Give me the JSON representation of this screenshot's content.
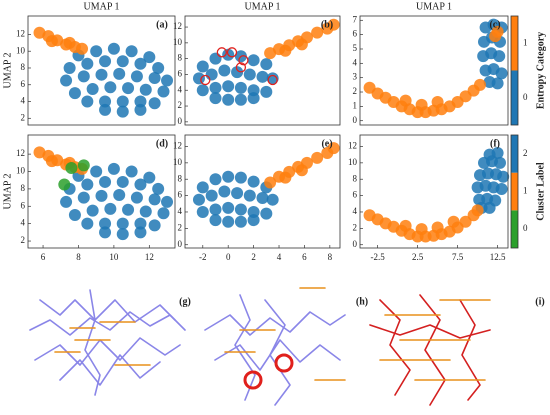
{
  "chart_data": [
    {
      "type": "scatter",
      "label": "(a)",
      "title": "UMAP 1",
      "ylabel": "UMAP 2",
      "xlim": [
        5.15,
        13.45
      ],
      "ylim": [
        1.2,
        14.2
      ],
      "yticks": [
        2,
        4,
        6,
        8,
        10,
        12
      ],
      "series": [
        {
          "color": "#1f77b4",
          "x": [
            8,
            9,
            10,
            11,
            12,
            7.5,
            8.5,
            9.5,
            10.5,
            11.5,
            12.5,
            7.3,
            8.3,
            9.3,
            10.3,
            11.3,
            12.3,
            13,
            7.8,
            8.8,
            9.8,
            10.8,
            11.8,
            12.8,
            8.5,
            9.5,
            10.5,
            11.5,
            12.3,
            9.5,
            10.5,
            11.5
          ],
          "y": [
            9.5,
            10,
            10.3,
            10,
            9.3,
            8,
            8.5,
            8.8,
            8.8,
            8.5,
            8,
            6.5,
            7,
            7.2,
            7.3,
            7,
            6.8,
            6.5,
            5,
            5.5,
            5.7,
            5.6,
            5.4,
            5.2,
            4,
            4,
            4,
            4,
            3.8,
            3,
            2.8,
            3
          ]
        },
        {
          "color": "#ff7f0e",
          "x": [
            5.8,
            6.3,
            6.8,
            7.3,
            7.8,
            8.2,
            6.5,
            7.5
          ],
          "y": [
            12.2,
            11.8,
            11.3,
            10.8,
            10.5,
            10.3,
            11.2,
            11.0
          ]
        }
      ]
    },
    {
      "type": "scatter",
      "label": "(b)",
      "title": "UMAP 1",
      "xlim": [
        -3.4,
        8.8
      ],
      "ylim": [
        -0.4,
        13.4
      ],
      "yticks": [
        0,
        2,
        4,
        6,
        8,
        10,
        12
      ],
      "series": [
        {
          "color": "#1f77b4",
          "x": [
            -2,
            -1,
            0,
            1,
            2,
            3,
            -2.3,
            -1.3,
            -0.3,
            0.7,
            1.7,
            2.7,
            3.5,
            -2,
            -1,
            0,
            1,
            2,
            3,
            -1,
            0,
            1,
            2
          ],
          "y": [
            7,
            8,
            8.5,
            8.3,
            7.8,
            7.3,
            5.5,
            6,
            6.5,
            6.3,
            6,
            5.7,
            5.5,
            4,
            4.3,
            4.5,
            4.3,
            4,
            3.8,
            3,
            2.8,
            2.8,
            3
          ]
        },
        {
          "color": "#ff7f0e",
          "x": [
            3.3,
            4,
            4.8,
            5.5,
            6.2,
            7,
            7.8,
            8.3,
            4.5,
            5.8
          ],
          "y": [
            8.7,
            9.2,
            9.7,
            10.2,
            10.7,
            11.3,
            11.8,
            12.3,
            9,
            9.8
          ]
        }
      ],
      "circles": {
        "color": "#e0201c",
        "x": [
          -0.5,
          0.3,
          1.2,
          1.0,
          -1.8,
          3.5
        ],
        "y": [
          8.8,
          8.8,
          7.8,
          6.9,
          5.3,
          5.3
        ]
      }
    },
    {
      "type": "scatter",
      "label": "(c)",
      "title": "UMAP 1",
      "xlim": [
        -4.7,
        13.8
      ],
      "ylim": [
        -0.3,
        7.3
      ],
      "yticks": [
        0,
        1,
        2,
        3,
        4,
        5,
        6,
        7
      ],
      "series": [
        {
          "color": "#1f77b4",
          "x": [
            11,
            12,
            13,
            10.8,
            11.8,
            12.8,
            10.7,
            11.7,
            12.7,
            11,
            12,
            13,
            11.5,
            12.5
          ],
          "y": [
            6.5,
            6.7,
            6.5,
            5.5,
            5.8,
            5.5,
            4.5,
            4.7,
            4.5,
            3.5,
            3.6,
            3.3,
            2.7,
            2.6
          ]
        },
        {
          "color": "#ff7f0e",
          "x": [
            -3.5,
            -2.5,
            -1.5,
            -0.5,
            0.5,
            1.5,
            2.5,
            3.5,
            4.5,
            5.5,
            6.5,
            7.5,
            8.5,
            9.5,
            10.3,
            1,
            3,
            5,
            12.5,
            12.2
          ],
          "y": [
            2.3,
            1.9,
            1.6,
            1.3,
            1.0,
            0.8,
            0.6,
            0.6,
            0.7,
            0.8,
            1.0,
            1.3,
            1.7,
            2.1,
            2.5,
            1.4,
            1.1,
            1.3,
            6.2,
            5.9
          ]
        }
      ]
    },
    {
      "type": "scatter",
      "label": "(d)",
      "ylabel": "UMAP 2",
      "xlim": [
        5.15,
        13.45
      ],
      "ylim": [
        1.2,
        14.2
      ],
      "xticks": [
        6,
        8,
        10,
        12
      ],
      "yticks": [
        2,
        4,
        6,
        8,
        10,
        12
      ],
      "series": [
        {
          "color": "#1f77b4",
          "x": [
            8,
            9,
            10,
            11,
            12,
            7.5,
            8.5,
            9.5,
            10.5,
            11.5,
            12.5,
            7.3,
            8.3,
            9.3,
            10.3,
            11.3,
            12.3,
            13,
            7.8,
            8.8,
            9.8,
            10.8,
            11.8,
            12.8,
            8.5,
            9.5,
            10.5,
            11.5,
            12.3,
            9.5,
            10.5,
            11.5
          ],
          "y": [
            9.5,
            10,
            10.3,
            10,
            9.3,
            8,
            8.5,
            8.8,
            8.8,
            8.5,
            8,
            6.5,
            7,
            7.2,
            7.3,
            7,
            6.8,
            6.5,
            5,
            5.5,
            5.7,
            5.6,
            5.4,
            5.2,
            4,
            4,
            4,
            4,
            3.8,
            3,
            2.8,
            3
          ]
        },
        {
          "color": "#ff7f0e",
          "x": [
            5.8,
            6.3,
            6.8,
            7.3,
            7.8,
            8.2,
            6.5,
            7.5
          ],
          "y": [
            12.2,
            11.8,
            11.3,
            10.8,
            10.5,
            10.3,
            11.2,
            11.0
          ]
        },
        {
          "color": "#2ca02c",
          "x": [
            7.6,
            7.2,
            8.3
          ],
          "y": [
            10.4,
            8.5,
            10.7
          ]
        }
      ]
    },
    {
      "type": "scatter",
      "label": "(e)",
      "xlim": [
        -3.4,
        8.8
      ],
      "ylim": [
        -0.4,
        13.4
      ],
      "xticks": [
        -2,
        0,
        2,
        4,
        6,
        8
      ],
      "yticks": [
        0,
        2,
        4,
        6,
        8,
        10,
        12
      ],
      "series": [
        {
          "color": "#1f77b4",
          "x": [
            -2,
            -1,
            0,
            1,
            2,
            3,
            -2.3,
            -1.3,
            -0.3,
            0.7,
            1.7,
            2.7,
            3.5,
            -2,
            -1,
            0,
            1,
            2,
            3,
            -1,
            0,
            1,
            2
          ],
          "y": [
            7,
            8,
            8.3,
            8.2,
            7.7,
            7.0,
            5.5,
            6,
            6.5,
            6.3,
            6,
            5.7,
            5.5,
            4,
            4.3,
            4.5,
            4.3,
            4,
            3.8,
            3,
            2.8,
            2.8,
            3
          ]
        },
        {
          "color": "#ff7f0e",
          "x": [
            3.3,
            4,
            4.8,
            5.5,
            6.2,
            7,
            7.8,
            8.3,
            4.5,
            5.8
          ],
          "y": [
            7.6,
            8.3,
            8.9,
            9.5,
            10.0,
            10.6,
            11.2,
            11.8,
            8.2,
            9.1
          ]
        }
      ]
    },
    {
      "type": "scatter",
      "label": "(f)",
      "xlim": [
        -4.7,
        13.8
      ],
      "ylim": [
        -0.4,
        13.4
      ],
      "xticks": [
        -2.5,
        2.5,
        7.5,
        12.5
      ],
      "yticks": [
        0,
        2,
        4,
        6,
        8,
        10,
        12
      ],
      "series": [
        {
          "color": "#1f77b4",
          "x": [
            11.5,
            12.5,
            10.8,
            11.8,
            12.8,
            10.3,
            11.3,
            12.3,
            13.2,
            10,
            11,
            12,
            13,
            10.2,
            11.2,
            12.2,
            10.5,
            11.5
          ],
          "y": [
            11,
            11.2,
            10,
            10.2,
            10,
            8.5,
            8.7,
            8.6,
            8.3,
            7,
            7.2,
            7,
            6.8,
            5.5,
            5.6,
            5.4,
            4.5,
            4.5
          ]
        },
        {
          "color": "#ff7f0e",
          "x": [
            -3.5,
            -2.5,
            -1.5,
            -0.5,
            0.5,
            1.5,
            2.5,
            3.5,
            4.5,
            5.5,
            6.5,
            7.5,
            8.5,
            9.5,
            10,
            1,
            3,
            5,
            7
          ],
          "y": [
            3.6,
            3.1,
            2.6,
            2.2,
            1.7,
            1.3,
            1.0,
            1.0,
            1.1,
            1.3,
            1.6,
            2.1,
            2.8,
            3.6,
            4.2,
            2.3,
            1.9,
            2.1,
            2.8
          ]
        }
      ]
    },
    {
      "type": "colorbar",
      "label": "Entropy Category",
      "categories": [
        "0",
        "1"
      ],
      "colors": [
        "#1f77b4",
        "#ff7f0e"
      ]
    },
    {
      "type": "colorbar",
      "label": "Cluster Label",
      "categories": [
        "0",
        "1",
        "2"
      ],
      "colors": [
        "#2ca02c",
        "#ff7f0e",
        "#1f77b4"
      ]
    }
  ],
  "structures": [
    {
      "label": "(g)"
    },
    {
      "label": "(h)"
    },
    {
      "label": "(i)"
    }
  ]
}
